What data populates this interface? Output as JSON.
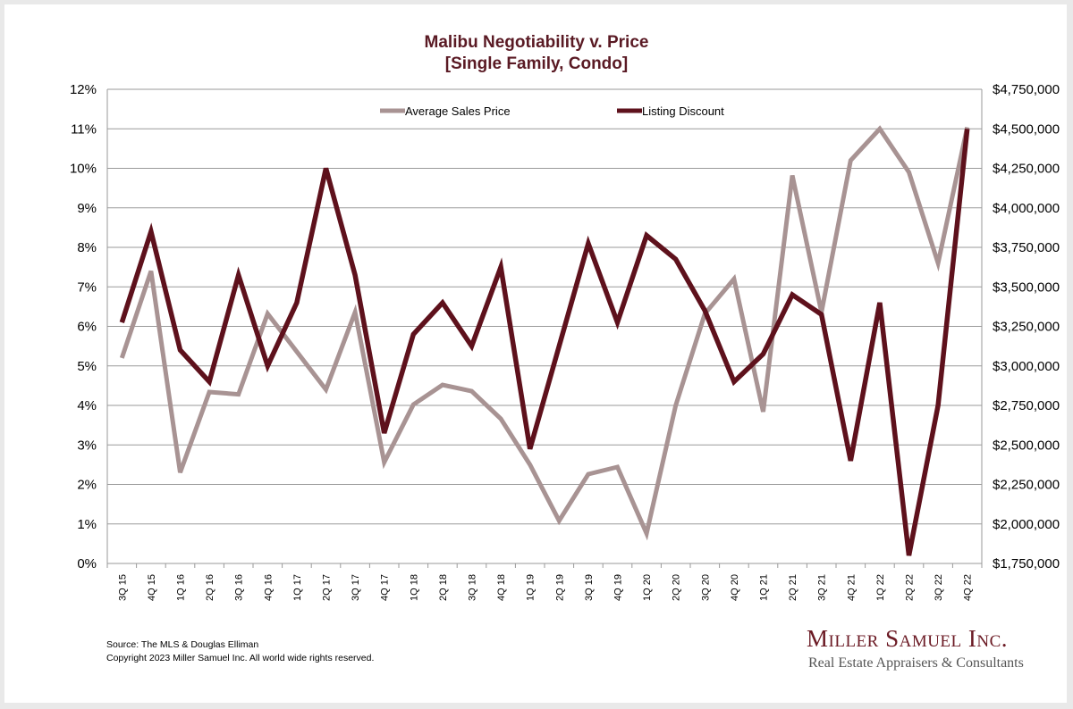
{
  "colors": {
    "title": "#5a1a24",
    "average_sales_price": "#a89393",
    "listing_discount": "#5e111c",
    "grid": "#9a9a9a",
    "logo": "#6b1a24"
  },
  "footer": {
    "source": "Source: The MLS & Douglas Elliman",
    "copyright": "Copyright 2023 Miller Samuel Inc.  All world wide rights reserved."
  },
  "logo": {
    "name": "Miller Samuel Inc.",
    "tagline": "Real Estate Appraisers & Consultants"
  },
  "chart_data": {
    "type": "line",
    "title_line1": "Malibu Negotiability v. Price",
    "title_line2": "[Single Family, Condo]",
    "categories": [
      "3Q 15",
      "4Q 15",
      "1Q 16",
      "2Q 16",
      "3Q 16",
      "4Q 16",
      "1Q 17",
      "2Q 17",
      "3Q 17",
      "4Q 17",
      "1Q 18",
      "2Q 18",
      "3Q 18",
      "4Q 18",
      "1Q 19",
      "2Q 19",
      "3Q 19",
      "4Q 19",
      "1Q 20",
      "2Q 20",
      "3Q 20",
      "4Q 20",
      "1Q 21",
      "2Q 21",
      "3Q 21",
      "4Q 21",
      "1Q 22",
      "2Q 22",
      "3Q 22",
      "4Q 22"
    ],
    "y_left": {
      "min": 0,
      "max": 12,
      "ticks": [
        "0%",
        "1%",
        "2%",
        "3%",
        "4%",
        "5%",
        "6%",
        "7%",
        "8%",
        "9%",
        "10%",
        "11%",
        "12%"
      ]
    },
    "y_right": {
      "min": 1750000,
      "max": 4750000,
      "ticks": [
        "$1,750,000",
        "$2,000,000",
        "$2,250,000",
        "$2,500,000",
        "$2,750,000",
        "$3,000,000",
        "$3,250,000",
        "$3,500,000",
        "$3,750,000",
        "$4,000,000",
        "$4,250,000",
        "$4,500,000",
        "$4,750,000"
      ]
    },
    "grid": true,
    "legend_position": "top",
    "series": [
      {
        "name": "Average Sales Price",
        "axis": "right",
        "values": [
          3050000,
          3600000,
          2325000,
          2835000,
          2820000,
          3330000,
          3090000,
          2850000,
          3340000,
          2390000,
          2755000,
          2880000,
          2840000,
          2665000,
          2375000,
          2020000,
          2315000,
          2360000,
          1940000,
          2750000,
          3330000,
          3550000,
          2710000,
          4205000,
          3340000,
          4300000,
          4500000,
          4225000,
          3650000,
          4510000
        ]
      },
      {
        "name": "Listing Discount",
        "axis": "left",
        "values": [
          6.1,
          8.4,
          5.4,
          4.6,
          7.3,
          5.0,
          6.6,
          10.0,
          7.3,
          3.3,
          5.8,
          6.6,
          5.5,
          7.5,
          2.9,
          5.5,
          8.1,
          6.1,
          8.3,
          7.7,
          6.4,
          4.6,
          5.3,
          6.8,
          6.3,
          2.6,
          6.6,
          0.2,
          4.0,
          11.0
        ]
      }
    ]
  }
}
